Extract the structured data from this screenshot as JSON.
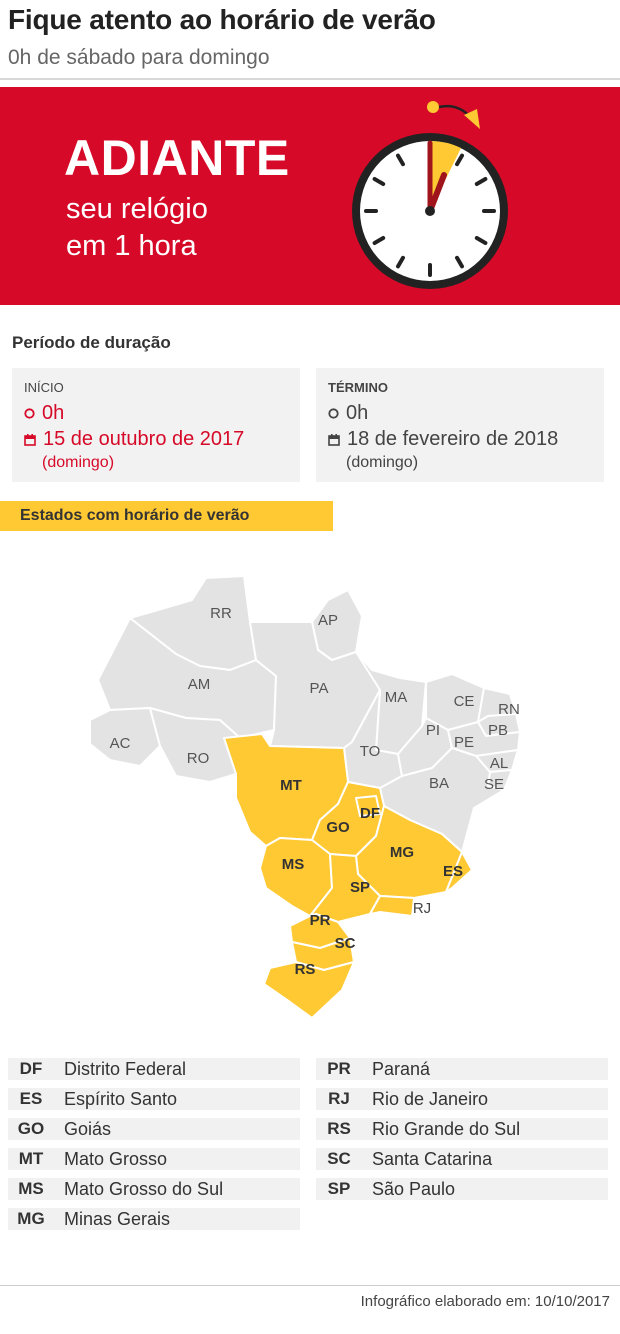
{
  "header": {
    "title": "Fique atento ao horário de verão",
    "subtitle": "0h de sábado para domingo"
  },
  "banner": {
    "headline": "ADIANTE",
    "line1": "seu relógio",
    "line2": "em 1 hora",
    "clock_icon": "clock-forward-icon",
    "colors": {
      "background": "#d60a28",
      "accent": "#ffc933"
    }
  },
  "period": {
    "label": "Período de duração",
    "start": {
      "heading": "INÍCIO",
      "time": "0h",
      "date": "15 de outubro de 2017",
      "weekday": "(domingo)"
    },
    "end": {
      "heading": "TÉRMINO",
      "time": "0h",
      "date": "18 de fevereiro de 2018",
      "weekday": "(domingo)"
    }
  },
  "states_label": "Estados com horário de verão",
  "map": {
    "labels": [
      "RR",
      "AP",
      "AM",
      "PA",
      "MA",
      "CE",
      "RN",
      "PB",
      "PI",
      "PE",
      "AL",
      "AC",
      "RO",
      "TO",
      "SE",
      "BA",
      "MT",
      "DF",
      "GO",
      "MG",
      "ES",
      "MS",
      "SP",
      "RJ",
      "PR",
      "SC",
      "RS"
    ],
    "highlighted": [
      "DF",
      "ES",
      "GO",
      "MT",
      "MS",
      "MG",
      "PR",
      "RJ",
      "RS",
      "SC",
      "SP"
    ],
    "colors": {
      "highlight": "#ffc933",
      "other": "#e3e3e3",
      "border": "#ffffff"
    }
  },
  "legend": {
    "col1": [
      {
        "code": "DF",
        "name": "Distrito Federal"
      },
      {
        "code": "ES",
        "name": "Espírito Santo"
      },
      {
        "code": "GO",
        "name": "Goiás"
      },
      {
        "code": "MT",
        "name": "Mato Grosso"
      },
      {
        "code": "MS",
        "name": "Mato Grosso do Sul"
      },
      {
        "code": "MG",
        "name": "Minas Gerais"
      }
    ],
    "col2": [
      {
        "code": "PR",
        "name": "Paraná"
      },
      {
        "code": "RJ",
        "name": "Rio de Janeiro"
      },
      {
        "code": "RS",
        "name": "Rio Grande do Sul"
      },
      {
        "code": "SC",
        "name": "Santa Catarina"
      },
      {
        "code": "SP",
        "name": "São Paulo"
      }
    ]
  },
  "footer": {
    "credit": "Infográfico elaborado em: 10/10/2017"
  }
}
